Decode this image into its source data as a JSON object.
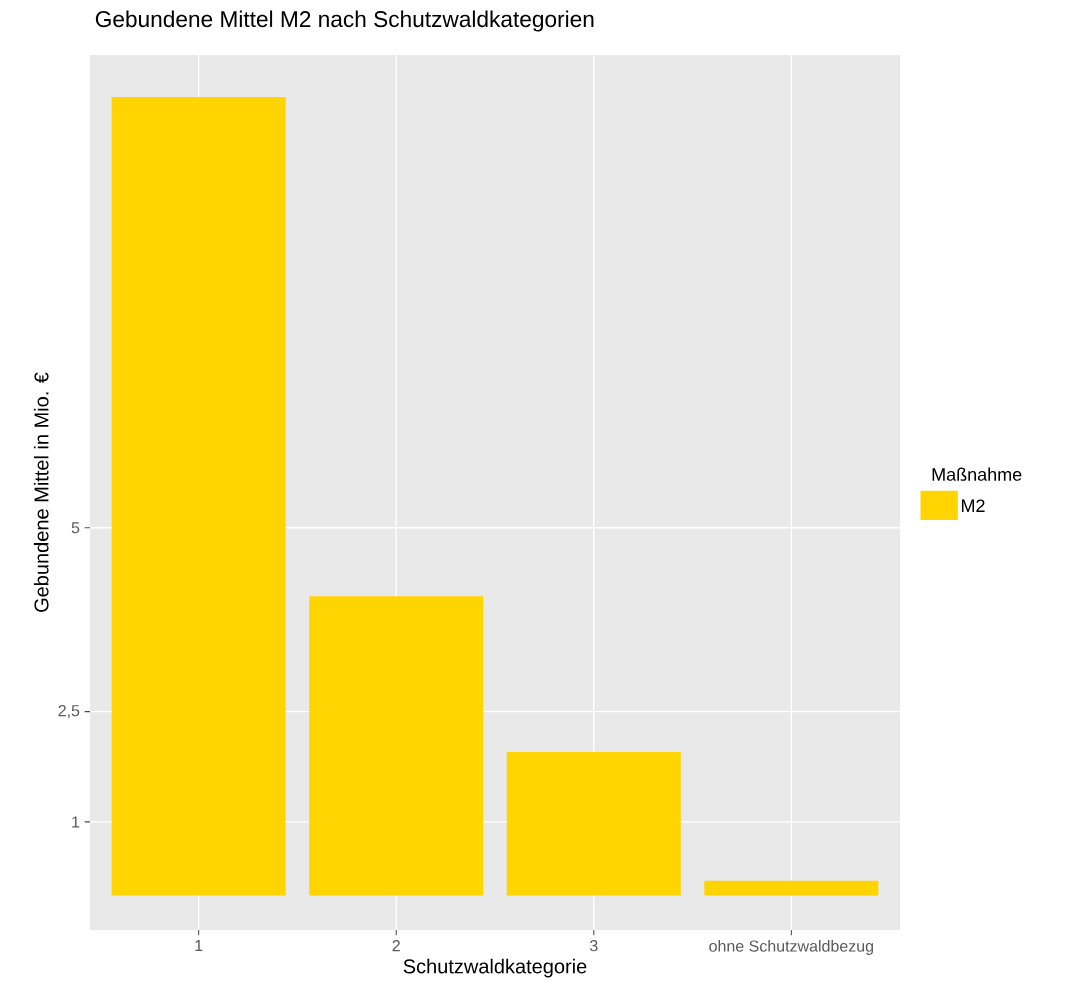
{
  "chart_data": {
    "type": "bar",
    "title": "Gebundene Mittel M2 nach Schutzwaldkategorien",
    "xlabel": "Schutzwaldkategorie",
    "ylabel": "Gebundene Mittel in Mio. €",
    "legend_title": "Maßnahme",
    "categories": [
      "1",
      "2",
      "3",
      "ohne Schutzwaldbezug"
    ],
    "series": [
      {
        "name": "M2",
        "color": "#ffd400",
        "values": [
          10.86,
          4.07,
          1.95,
          0.2
        ]
      }
    ],
    "ylim": [
      -0.47,
      11.43
    ],
    "yticks": [
      1,
      {
        "value": 2.5,
        "label": "2,5"
      },
      5
    ],
    "grid": true,
    "legend": "right"
  }
}
